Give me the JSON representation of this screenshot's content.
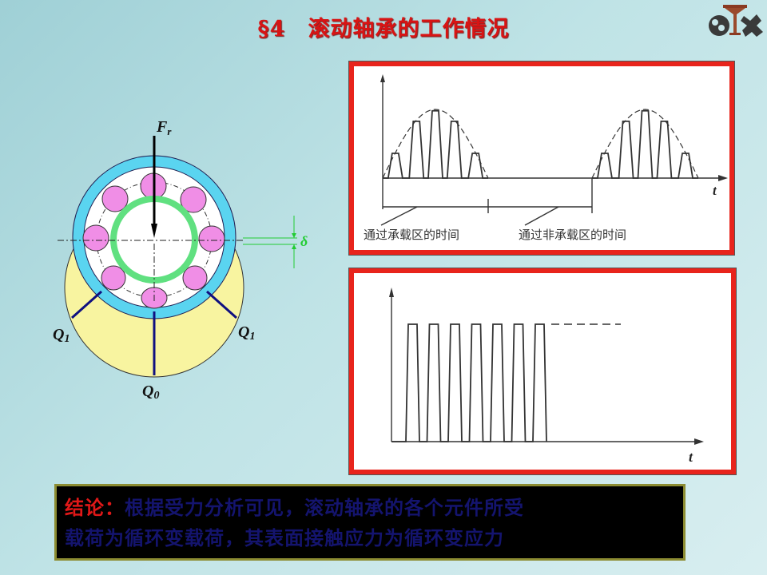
{
  "title": "§4　滚动轴承的工作情况",
  "logo": {
    "icon": "university-logo"
  },
  "bearing_diagram": {
    "force_label": "F",
    "force_sub": "r",
    "clearance_label": "δ",
    "q1_label": "Q",
    "q1_sub": "1",
    "q0_label": "Q",
    "q0_sub": "0",
    "colors": {
      "outer_ring": "#5ad4f0",
      "inner_ring": "#60e080",
      "rollers": "#f08ee6",
      "load_zone": "#f8f4a0",
      "clearance": "#22cc33"
    }
  },
  "upper_chart": {
    "t_label": "t",
    "loaded_time_label": "通过承载区的时间",
    "unloaded_time_label": "通过非承载区的时间"
  },
  "lower_chart": {
    "t_label": "t"
  },
  "conclusion": {
    "label": "结论：",
    "text_line1": "根据受力分析可见，滚动轴承的各个元件所受",
    "text_line2": "载荷为循环变载荷，其表面接触应力为循环变应力"
  }
}
